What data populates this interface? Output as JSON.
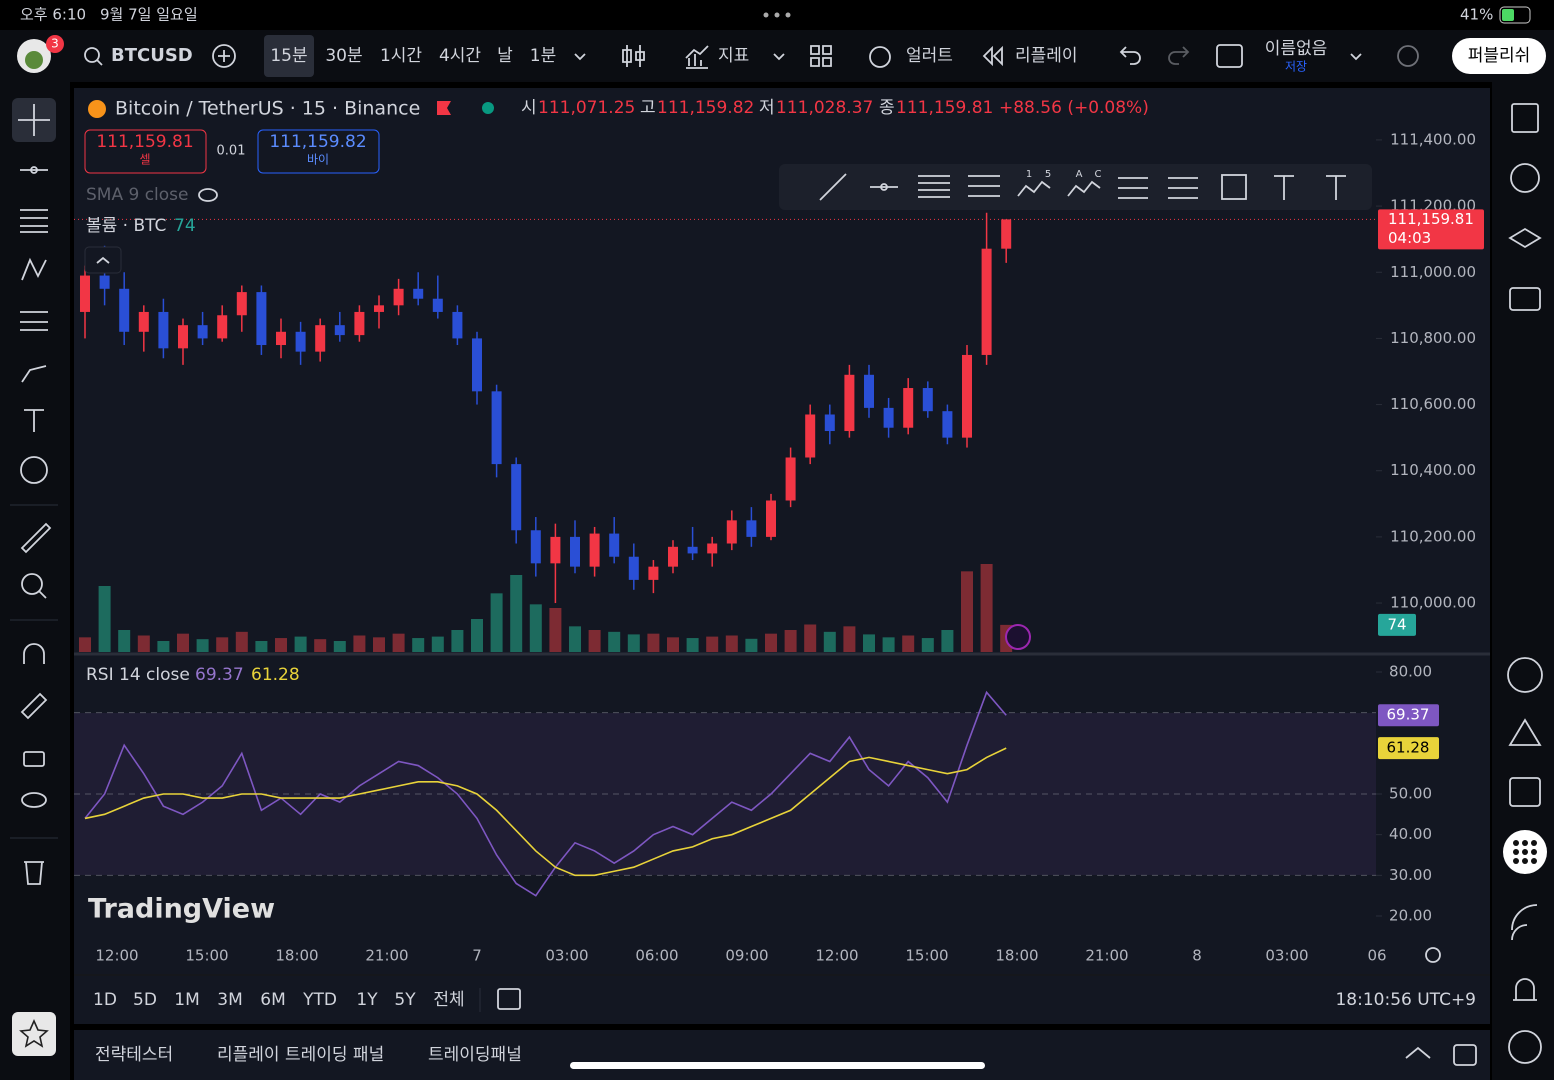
{
  "status_bar": {
    "time": "오후 6:10",
    "date": "9월 7일 일요일",
    "battery": "41%"
  },
  "toolbar": {
    "badge": "3",
    "symbol": "BTCUSD",
    "intervals": [
      "15분",
      "30분",
      "1시간",
      "4시간",
      "날",
      "1분"
    ],
    "indicators": "지표",
    "alert": "얼러트",
    "replay": "리플레이",
    "layout_name": "이름없음",
    "save": "저장",
    "publish": "퍼블리쉬"
  },
  "legend": {
    "title": "Bitcoin / TetherUS · 15 · Binance",
    "open_label": "시",
    "open": "111,071.25",
    "high_label": "고",
    "high": "111,159.82",
    "low_label": "저",
    "low": "111,028.37",
    "close_label": "종",
    "close": "111,159.81",
    "change": "+88.56 (+0.08%)",
    "sell_price": "111,159.81",
    "sell": "셀",
    "spread": "0.01",
    "buy_price": "111,159.82",
    "buy": "바이",
    "sma": "SMA 9 close",
    "volume": "볼륨 · BTC"
  },
  "drawing_toolbar": {
    "labels": [
      "1",
      "5",
      "A",
      "C"
    ]
  },
  "price_chart": {
    "type": "candlestick",
    "up_color": "#f23645",
    "down_color": "#2a4fd6",
    "volume_up_color": "#7d2b33",
    "volume_down_color": "#1d6b5e",
    "ylim": [
      109852,
      111557
    ],
    "yticks": [
      {
        "value": 111400,
        "label": "111,400.00"
      },
      {
        "value": 111200,
        "label": "111,200.00"
      },
      {
        "value": 111000,
        "label": "111,000.00"
      },
      {
        "value": 110800,
        "label": "110,800.00"
      },
      {
        "value": 110600,
        "label": "110,600.00"
      },
      {
        "value": 110400,
        "label": "110,400.00"
      },
      {
        "value": 110200,
        "label": "110,200.00"
      },
      {
        "value": 110000,
        "label": "110,000.00"
      }
    ],
    "vlim": [
      0,
      600
    ],
    "last_price_label": "111,159.81",
    "countdown": "04:03",
    "candles": [
      [
        110880,
        111020,
        110800,
        110990
      ],
      [
        110990,
        111080,
        110900,
        110950
      ],
      [
        110950,
        111000,
        110780,
        110820
      ],
      [
        110820,
        110900,
        110760,
        110880
      ],
      [
        110880,
        110920,
        110740,
        110770
      ],
      [
        110770,
        110860,
        110720,
        110840
      ],
      [
        110840,
        110880,
        110780,
        110800
      ],
      [
        110800,
        110900,
        110790,
        110870
      ],
      [
        110870,
        110960,
        110820,
        110940
      ],
      [
        110940,
        110960,
        110750,
        110780
      ],
      [
        110780,
        110860,
        110740,
        110820
      ],
      [
        110820,
        110850,
        110720,
        110760
      ],
      [
        110760,
        110860,
        110730,
        110840
      ],
      [
        110840,
        110880,
        110790,
        110810
      ],
      [
        110810,
        110900,
        110790,
        110880
      ],
      [
        110880,
        110930,
        110830,
        110900
      ],
      [
        110900,
        110980,
        110870,
        110950
      ],
      [
        110950,
        111000,
        110900,
        110920
      ],
      [
        110920,
        110990,
        110860,
        110880
      ],
      [
        110880,
        110900,
        110780,
        110800
      ],
      [
        110800,
        110820,
        110600,
        110640
      ],
      [
        110640,
        110660,
        110380,
        110420
      ],
      [
        110420,
        110440,
        110180,
        110220
      ],
      [
        110220,
        110260,
        110080,
        110120
      ],
      [
        110120,
        110240,
        110000,
        110200
      ],
      [
        110200,
        110250,
        110090,
        110110
      ],
      [
        110110,
        110230,
        110080,
        110210
      ],
      [
        110210,
        110260,
        110120,
        110140
      ],
      [
        110140,
        110180,
        110040,
        110070
      ],
      [
        110070,
        110130,
        110030,
        110110
      ],
      [
        110110,
        110190,
        110090,
        110170
      ],
      [
        110170,
        110230,
        110130,
        110150
      ],
      [
        110150,
        110200,
        110110,
        110180
      ],
      [
        110180,
        110280,
        110160,
        110250
      ],
      [
        110250,
        110290,
        110170,
        110200
      ],
      [
        110200,
        110330,
        110190,
        110310
      ],
      [
        110310,
        110470,
        110290,
        110440
      ],
      [
        110440,
        110600,
        110420,
        110570
      ],
      [
        110570,
        110600,
        110480,
        110520
      ],
      [
        110520,
        110720,
        110500,
        110690
      ],
      [
        110690,
        110720,
        110560,
        110590
      ],
      [
        110590,
        110620,
        110500,
        110530
      ],
      [
        110530,
        110680,
        110510,
        110650
      ],
      [
        110650,
        110670,
        110560,
        110580
      ],
      [
        110580,
        110600,
        110480,
        110500
      ],
      [
        110500,
        110780,
        110470,
        110750
      ],
      [
        110750,
        111180,
        110720,
        111071.25
      ],
      [
        111071.25,
        111159.82,
        111028.37,
        111159.81
      ]
    ],
    "volumes": [
      40,
      180,
      60,
      45,
      30,
      50,
      35,
      40,
      55,
      30,
      38,
      42,
      35,
      30,
      45,
      40,
      50,
      38,
      42,
      60,
      90,
      160,
      210,
      130,
      120,
      70,
      60,
      55,
      48,
      50,
      40,
      38,
      42,
      45,
      36,
      50,
      60,
      75,
      55,
      70,
      48,
      40,
      45,
      38,
      60,
      220,
      240,
      74
    ]
  },
  "rsi_chart": {
    "type": "line",
    "title": "RSI 14 close",
    "ylim": [
      15.33,
      84.18
    ],
    "yticks": [
      {
        "value": 80,
        "label": "80.00"
      },
      {
        "value": 50,
        "label": "50.00"
      },
      {
        "value": 40,
        "label": "40.00"
      },
      {
        "value": 30,
        "label": "30.00"
      },
      {
        "value": 20,
        "label": "20.00"
      }
    ],
    "levels": [
      70,
      50,
      30
    ],
    "series": [
      {
        "name": "RSI",
        "color": "#7e57c2",
        "values": [
          44,
          50,
          62,
          55,
          47,
          45,
          48,
          52,
          60,
          46,
          49,
          45,
          50,
          48,
          52,
          55,
          58,
          57,
          54,
          50,
          44,
          35,
          28,
          25,
          32,
          38,
          36,
          33,
          36,
          40,
          42,
          40,
          44,
          48,
          46,
          50,
          55,
          60,
          58,
          64,
          56,
          52,
          58,
          54,
          48,
          62,
          75,
          69.37
        ]
      },
      {
        "name": "SMA",
        "color": "#e8d33a",
        "values": [
          44,
          45,
          47,
          49,
          50,
          50,
          49,
          49,
          50,
          50,
          49,
          49,
          49,
          49,
          50,
          51,
          52,
          53,
          53,
          52,
          50,
          46,
          41,
          36,
          32,
          30,
          30,
          31,
          32,
          34,
          36,
          37,
          39,
          40,
          42,
          44,
          46,
          50,
          54,
          58,
          59,
          58,
          57,
          56,
          55,
          56,
          59,
          61.28
        ]
      }
    ]
  },
  "watermark": "TradingView",
  "time_axis": {
    "labels": [
      "12:00",
      "15:00",
      "18:00",
      "21:00",
      "7",
      "03:00",
      "06:00",
      "09:00",
      "12:00",
      "15:00",
      "18:00",
      "21:00",
      "8",
      "03:00",
      "06"
    ]
  },
  "range_bar": {
    "ranges": [
      "1D",
      "5D",
      "1M",
      "3M",
      "6M",
      "YTD",
      "1Y",
      "5Y",
      "전체"
    ],
    "clock": "18:10:56 UTC+9"
  },
  "bottom_panel": {
    "tabs": [
      "전략테스터",
      "리플레이 트레이딩 패널",
      "트레이딩패널"
    ]
  }
}
